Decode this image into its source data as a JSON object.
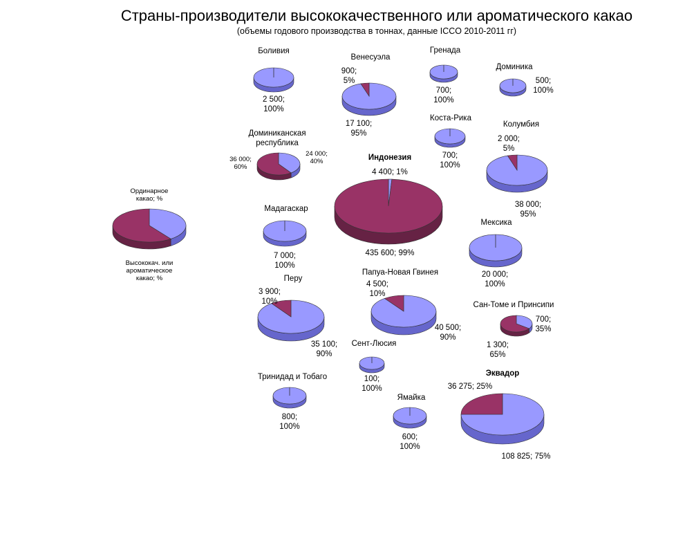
{
  "chart_data": {
    "type": "pie",
    "title": "Страны-производители высококачественного или ароматического какао",
    "subtitle": "(объемы годового производства в тоннах, данные ICCO 2010-2011 гг)",
    "legend": {
      "position": "left",
      "entries": [
        {
          "name": "Ординарное какао; %",
          "label": "Ординарное|какао; %",
          "color": "#993366",
          "value": 60
        },
        {
          "name": "Высококач. или ароматическое какао; %",
          "label": "Высококач. или|ароматическое|какао; %",
          "color": "#9999ff",
          "value": 40
        }
      ]
    },
    "countries": [
      {
        "name": "Боливия",
        "premium": 2500,
        "ordinary": 0,
        "premium_pct": 100,
        "ordinary_pct": 0,
        "premium_label": "2 500;|100%",
        "ordinary_label": ""
      },
      {
        "name": "Венесуэла",
        "premium": 17100,
        "ordinary": 900,
        "premium_pct": 95,
        "ordinary_pct": 5,
        "premium_label": "17 100;|95%",
        "ordinary_label": "900;|5%"
      },
      {
        "name": "Гренада",
        "premium": 700,
        "ordinary": 0,
        "premium_pct": 100,
        "ordinary_pct": 0,
        "premium_label": "700;|100%",
        "ordinary_label": ""
      },
      {
        "name": "Доминика",
        "premium": 500,
        "ordinary": 0,
        "premium_pct": 100,
        "ordinary_pct": 0,
        "premium_label": "500;|100%",
        "ordinary_label": ""
      },
      {
        "name": "Доминиканская|республика",
        "premium": 24000,
        "ordinary": 36000,
        "premium_pct": 40,
        "ordinary_pct": 60,
        "premium_label": "24 000;|40%",
        "ordinary_label": "36 000;|60%"
      },
      {
        "name": "Коста-Рика",
        "premium": 700,
        "ordinary": 0,
        "premium_pct": 100,
        "ordinary_pct": 0,
        "premium_label": "700;|100%",
        "ordinary_label": ""
      },
      {
        "name": "Колумбия",
        "premium": 38000,
        "ordinary": 2000,
        "premium_pct": 95,
        "ordinary_pct": 5,
        "premium_label": "38 000;|95%",
        "ordinary_label": "2 000;|5%"
      },
      {
        "name": "Индонезия",
        "premium": 4400,
        "ordinary": 435600,
        "premium_pct": 1,
        "ordinary_pct": 99,
        "premium_label": "4 400; 1%",
        "ordinary_label": "435 600; 99%"
      },
      {
        "name": "Мадагаскар",
        "premium": 7000,
        "ordinary": 0,
        "premium_pct": 100,
        "ordinary_pct": 0,
        "premium_label": "7 000;|100%",
        "ordinary_label": ""
      },
      {
        "name": "Мексика",
        "premium": 20000,
        "ordinary": 0,
        "premium_pct": 100,
        "ordinary_pct": 0,
        "premium_label": "20 000;|100%",
        "ordinary_label": ""
      },
      {
        "name": "Перу",
        "premium": 35100,
        "ordinary": 3900,
        "premium_pct": 90,
        "ordinary_pct": 10,
        "premium_label": "35 100;|90%",
        "ordinary_label": "3 900;|10%"
      },
      {
        "name": "Папуа-Новая Гвинея",
        "premium": 40500,
        "ordinary": 4500,
        "premium_pct": 90,
        "ordinary_pct": 10,
        "premium_label": "40 500;|90%",
        "ordinary_label": "4 500;|10%"
      },
      {
        "name": "Сан-Томе и Принсипи",
        "premium": 700,
        "ordinary": 1300,
        "premium_pct": 35,
        "ordinary_pct": 65,
        "premium_label": "700;|35%",
        "ordinary_label": "1 300;|65%"
      },
      {
        "name": "Сент-Люсия",
        "premium": 100,
        "ordinary": 0,
        "premium_pct": 100,
        "ordinary_pct": 0,
        "premium_label": "100;|100%",
        "ordinary_label": ""
      },
      {
        "name": "Тринидад и Тобаго",
        "premium": 800,
        "ordinary": 0,
        "premium_pct": 100,
        "ordinary_pct": 0,
        "premium_label": "800;|100%",
        "ordinary_label": ""
      },
      {
        "name": "Ямайка",
        "premium": 600,
        "ordinary": 0,
        "premium_pct": 100,
        "ordinary_pct": 0,
        "premium_label": "600;|100%",
        "ordinary_label": ""
      },
      {
        "name": "Эквадор",
        "premium": 108825,
        "ordinary": 36275,
        "premium_pct": 75,
        "ordinary_pct": 25,
        "premium_label": "108 825; 75%",
        "ordinary_label": "36 275; 25%"
      }
    ]
  },
  "colors": {
    "premium": "#9999ff",
    "premium_side": "#6666cc",
    "ordinary": "#993366",
    "ordinary_side": "#662244",
    "edge": "#333333"
  }
}
